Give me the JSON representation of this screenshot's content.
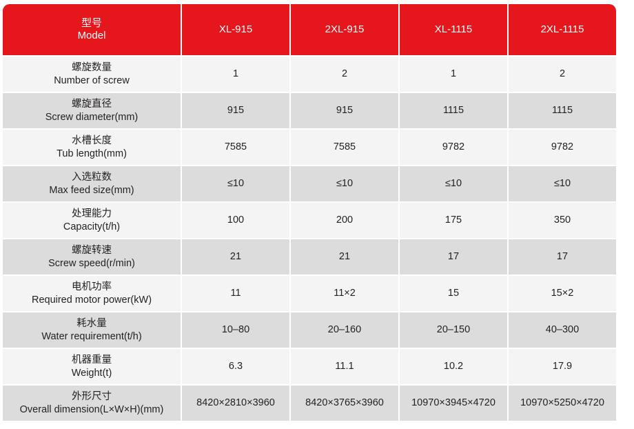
{
  "header": {
    "label_cn": "型号",
    "label_en": "Model",
    "models": [
      "XL-915",
      "2XL-915",
      "XL-1115",
      "2XL-1115"
    ]
  },
  "rows": [
    {
      "cn": "螺旋数量",
      "en": "Number of screw",
      "values": [
        "1",
        "2",
        "1",
        "2"
      ]
    },
    {
      "cn": "螺旋直径",
      "en": "Screw diameter(mm)",
      "values": [
        "915",
        "915",
        "1115",
        "1115"
      ]
    },
    {
      "cn": "水槽长度",
      "en": "Tub length(mm)",
      "values": [
        "7585",
        "7585",
        "9782",
        "9782"
      ]
    },
    {
      "cn": "入选粒数",
      "en": "Max feed size(mm)",
      "values": [
        "≤10",
        "≤10",
        "≤10",
        "≤10"
      ]
    },
    {
      "cn": "处理能力",
      "en": "Capacity(t/h)",
      "values": [
        "100",
        "200",
        "175",
        "350"
      ]
    },
    {
      "cn": "螺旋转速",
      "en": "Screw speed(r/min)",
      "values": [
        "21",
        "21",
        "17",
        "17"
      ]
    },
    {
      "cn": "电机功率",
      "en": "Required motor power(kW)",
      "values": [
        "11",
        "11×2",
        "15",
        "15×2"
      ]
    },
    {
      "cn": "耗水量",
      "en": "Water requirement(t/h)",
      "values": [
        "10–80",
        "20–160",
        "20–150",
        "40–300"
      ]
    },
    {
      "cn": "机器重量",
      "en": "Weight(t)",
      "values": [
        "6.3",
        "11.1",
        "10.2",
        "17.9"
      ]
    },
    {
      "cn": "外形尺寸",
      "en": "Overall dimension(L×W×H)(mm)",
      "values": [
        "8420×2810×3960",
        "8420×3765×3960",
        "10970×3945×4720",
        "10970×5250×4720"
      ]
    }
  ],
  "colors": {
    "header_bg": "#e5161c",
    "row_light": "#f4f4f4",
    "row_dark": "#dcdcdc",
    "text": "#231f20"
  }
}
